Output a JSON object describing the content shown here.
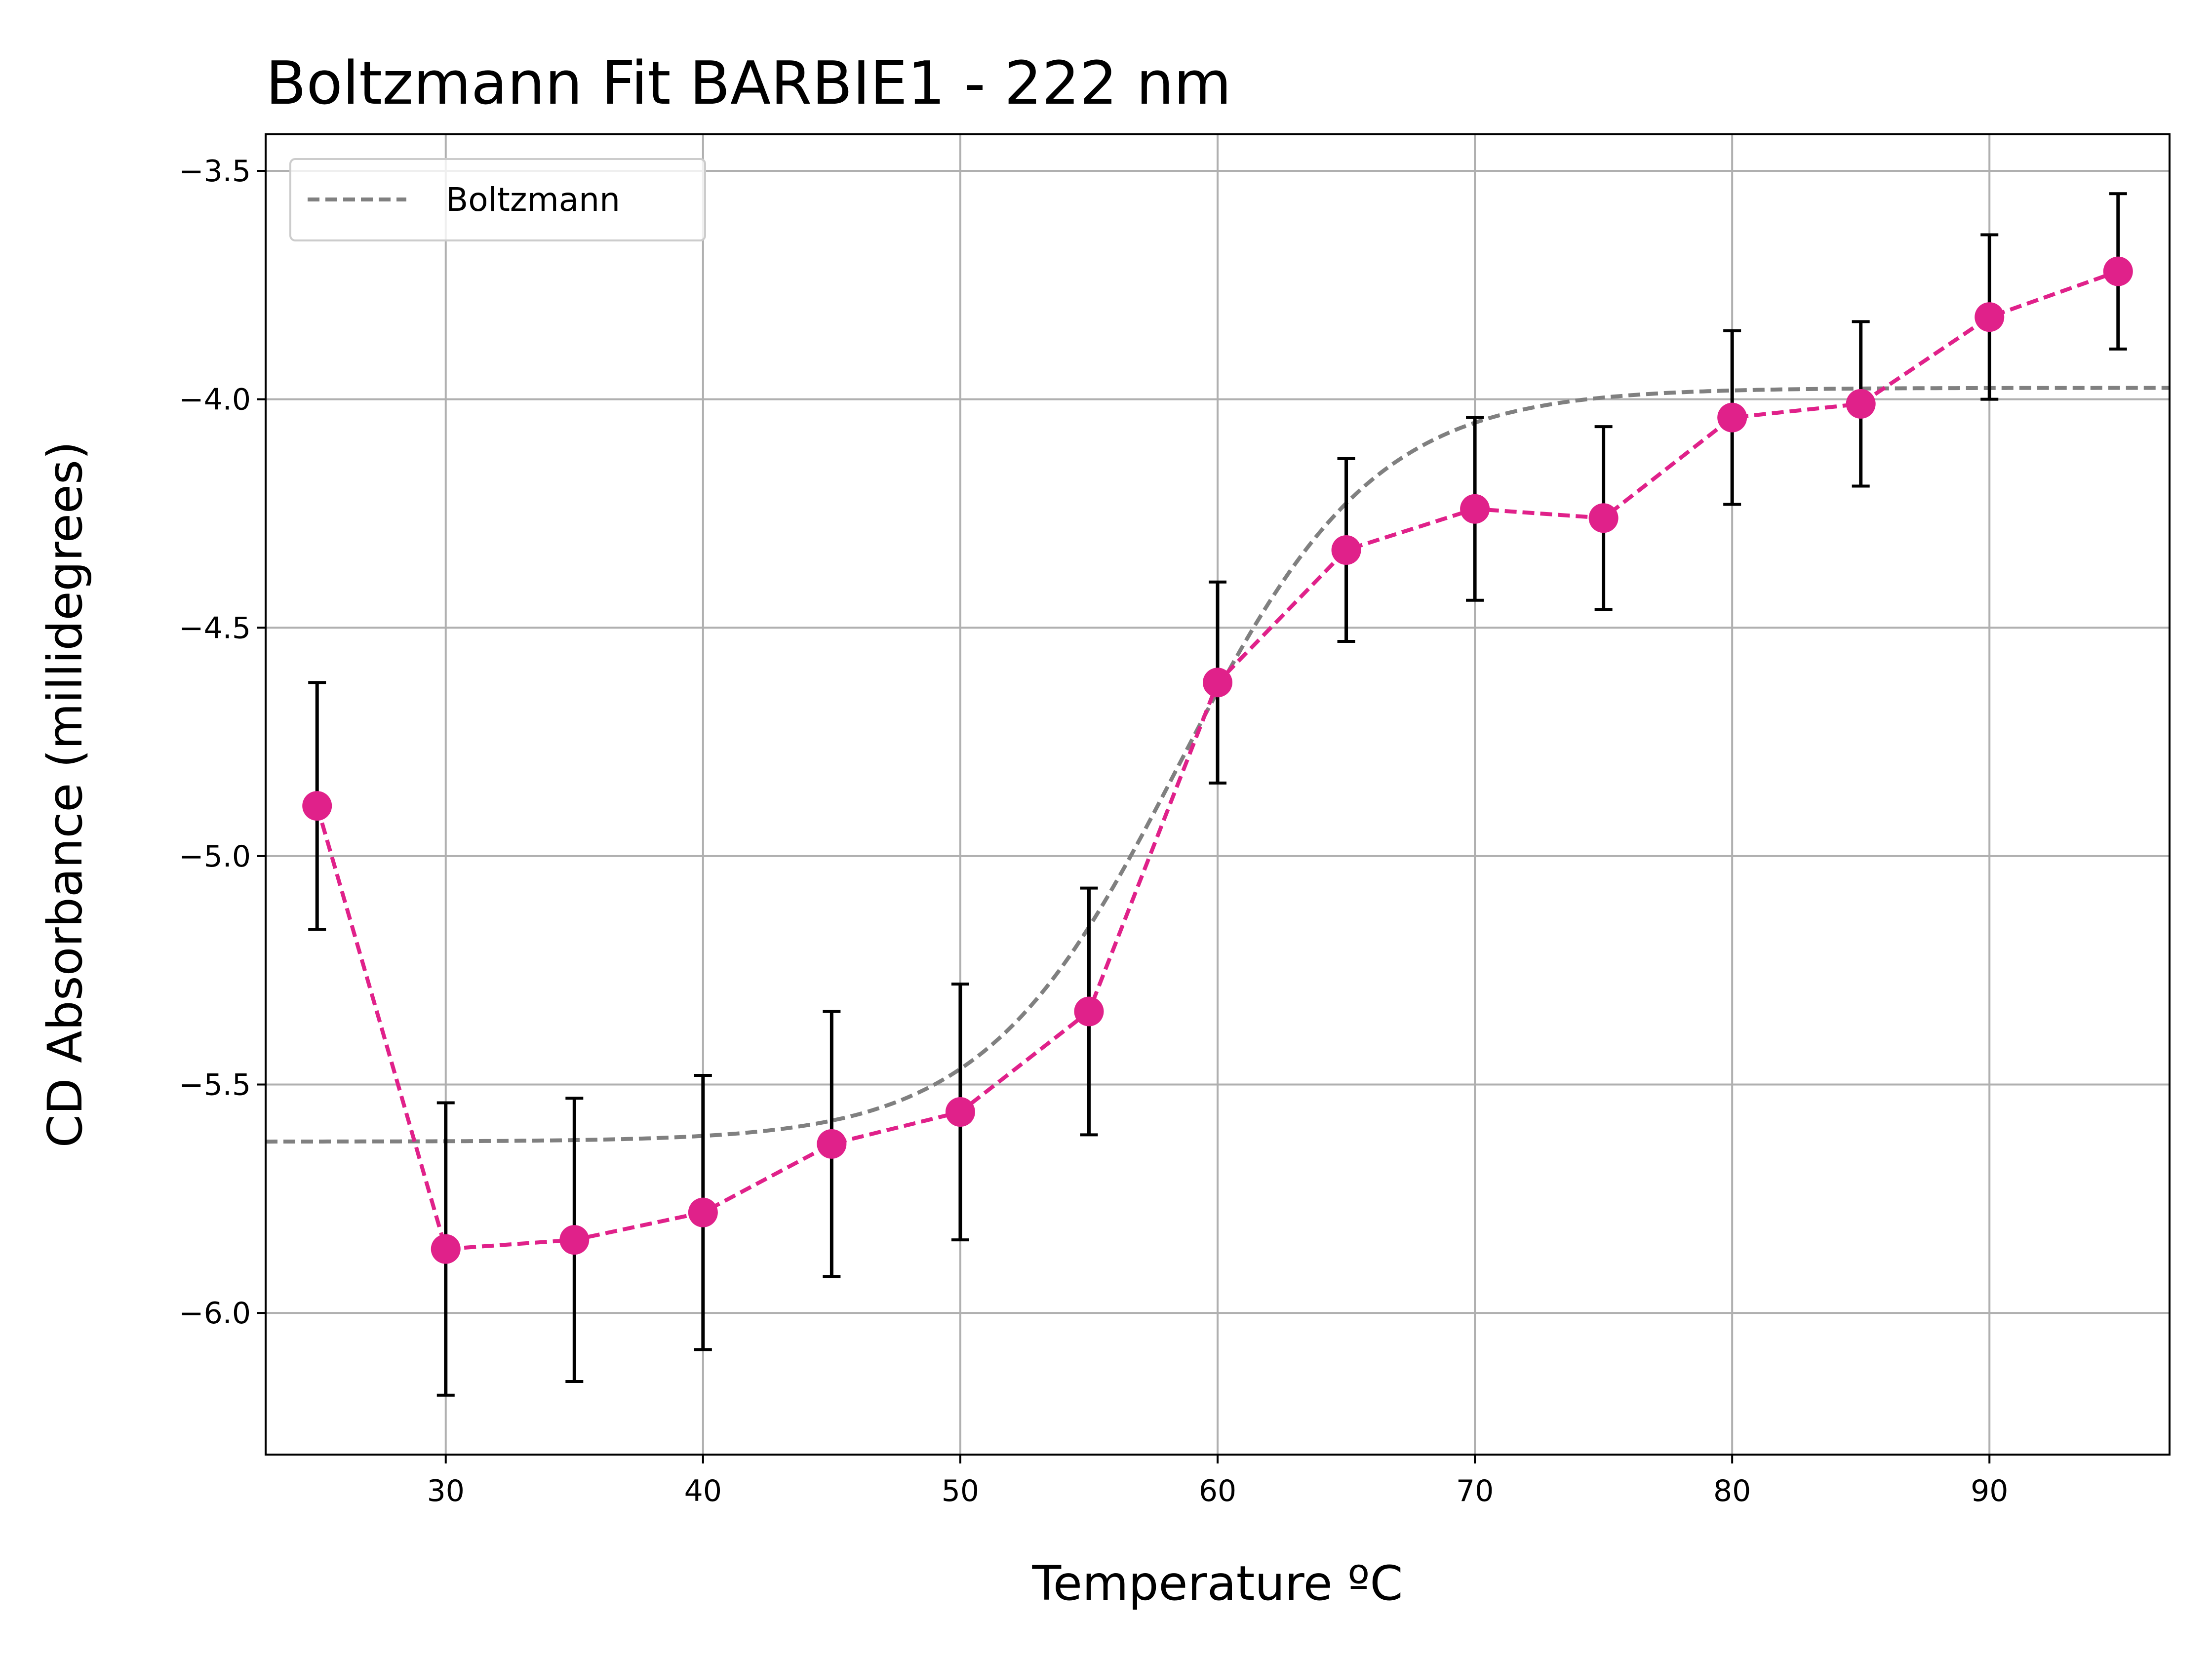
{
  "chart_data": {
    "type": "line",
    "title": "Boltzmann Fit BARBIE1 - 222 nm",
    "xlabel": "Temperature ºC",
    "ylabel": "CD Absorbance (millidegrees)",
    "xlim": [
      23,
      97
    ],
    "ylim": [
      -6.31,
      -3.42
    ],
    "xticks": [
      30,
      40,
      50,
      60,
      70,
      80,
      90
    ],
    "xtick_labels": [
      "30",
      "40",
      "50",
      "60",
      "70",
      "80",
      "90"
    ],
    "yticks": [
      -3.5,
      -4.0,
      -4.5,
      -5.0,
      -5.5,
      -6.0
    ],
    "ytick_labels": [
      "−3.5",
      "−4.0",
      "−4.5",
      "−5.0",
      "−5.5",
      "−6.0"
    ],
    "grid": true,
    "legend_position": "top-left",
    "series": [
      {
        "role": "measured",
        "style": "dashed-line-with-markers-and-errorbars",
        "color": "#e0218a",
        "errorbar_color": "#000000",
        "x": [
          25,
          30,
          35,
          40,
          45,
          50,
          55,
          60,
          65,
          70,
          75,
          80,
          85,
          90,
          95
        ],
        "y": [
          -4.89,
          -5.86,
          -5.84,
          -5.78,
          -5.63,
          -5.56,
          -5.34,
          -4.62,
          -4.33,
          -4.24,
          -4.26,
          -4.04,
          -4.01,
          -3.82,
          -3.72
        ],
        "yerr": [
          0.27,
          0.32,
          0.31,
          0.3,
          0.29,
          0.28,
          0.27,
          0.22,
          0.2,
          0.2,
          0.2,
          0.19,
          0.18,
          0.18,
          0.17
        ]
      },
      {
        "name": "Boltzmann",
        "role": "fit",
        "style": "dashed-line",
        "color": "#808080",
        "model": {
          "bottom": -5.625,
          "top": -3.975,
          "midpoint": 58.5,
          "slope": 3.8
        }
      }
    ]
  }
}
